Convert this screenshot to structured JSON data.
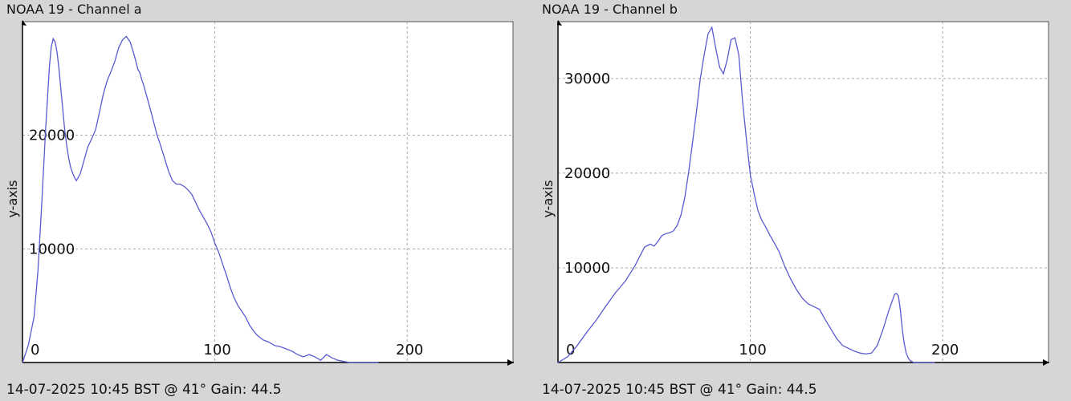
{
  "chart_data": [
    {
      "type": "line",
      "title": "NOAA 19 - Channel a",
      "ylabel": "y-axis",
      "xlabel": "",
      "footer": "14-07-2025 10:45 BST @ 41° Gain: 44.5",
      "xlim": [
        0,
        255
      ],
      "ylim": [
        0,
        30000
      ],
      "xticks": [
        0,
        100,
        200
      ],
      "yticks": [
        10000,
        20000
      ],
      "grid": true,
      "colors": {
        "line": "#5a5ad0",
        "grid": "#a8a8a8",
        "axis": "#000000",
        "plot_bg": "#ffffff"
      },
      "series": [
        {
          "x": [
            0,
            3,
            6,
            8,
            10,
            12,
            14,
            15,
            16,
            17,
            18,
            19,
            20,
            21,
            22,
            23,
            24,
            25,
            26,
            27,
            28,
            30,
            32,
            34,
            36,
            38,
            40,
            42,
            44,
            46,
            48,
            50,
            52,
            54,
            56,
            58,
            60,
            61,
            62,
            63,
            64,
            66,
            68,
            70,
            72,
            74,
            76,
            78,
            80,
            82,
            84,
            86,
            88,
            90,
            92,
            94,
            96,
            98,
            100,
            102,
            104,
            106,
            108,
            110,
            112,
            114,
            116,
            118,
            120,
            122,
            125,
            128,
            131,
            134,
            137,
            140,
            143,
            146,
            149,
            152,
            155,
            158,
            161,
            164,
            167,
            170,
            173,
            176,
            180,
            185
          ],
          "y": [
            0,
            1500,
            4000,
            8000,
            14000,
            20500,
            26000,
            27800,
            28500,
            28200,
            27300,
            25800,
            24000,
            22200,
            20400,
            19100,
            18000,
            17200,
            16700,
            16300,
            16000,
            16600,
            17800,
            19000,
            19700,
            20500,
            22000,
            23600,
            24800,
            25600,
            26500,
            27700,
            28400,
            28700,
            28200,
            27100,
            25800,
            25500,
            24900,
            24400,
            23800,
            22600,
            21300,
            20000,
            19000,
            17900,
            16800,
            16000,
            15700,
            15700,
            15500,
            15200,
            14800,
            14100,
            13400,
            12800,
            12200,
            11500,
            10500,
            9700,
            8700,
            7700,
            6600,
            5700,
            5000,
            4500,
            4000,
            3300,
            2800,
            2400,
            2000,
            1800,
            1500,
            1400,
            1200,
            1000,
            700,
            500,
            700,
            500,
            200,
            700,
            400,
            200,
            100,
            0,
            0,
            0,
            0,
            0
          ]
        }
      ]
    },
    {
      "type": "line",
      "title": "NOAA 19 - Channel b",
      "ylabel": "y-axis",
      "xlabel": "",
      "footer": "14-07-2025 10:45 BST @ 41° Gain: 44.5",
      "xlim": [
        0,
        255
      ],
      "ylim": [
        0,
        36000
      ],
      "xticks": [
        0,
        100,
        200
      ],
      "yticks": [
        10000,
        20000,
        30000
      ],
      "grid": true,
      "colors": {
        "line": "#5a5ad0",
        "grid": "#a8a8a8",
        "axis": "#000000",
        "plot_bg": "#ffffff"
      },
      "series": [
        {
          "x": [
            0,
            5,
            10,
            15,
            20,
            25,
            30,
            35,
            40,
            45,
            48,
            50,
            52,
            54,
            56,
            58,
            60,
            62,
            64,
            66,
            68,
            70,
            72,
            74,
            76,
            78,
            80,
            82,
            84,
            86,
            88,
            90,
            92,
            94,
            96,
            98,
            100,
            102,
            104,
            106,
            108,
            110,
            112,
            115,
            118,
            121,
            124,
            127,
            130,
            133,
            136,
            139,
            142,
            145,
            148,
            151,
            154,
            157,
            160,
            163,
            166,
            169,
            172,
            175,
            176,
            177,
            178,
            179,
            180,
            181,
            182,
            183,
            185,
            188,
            191,
            194,
            196
          ],
          "y": [
            0,
            600,
            1800,
            3200,
            4500,
            6000,
            7400,
            8600,
            10200,
            12200,
            12500,
            12300,
            12800,
            13400,
            13600,
            13700,
            13900,
            14500,
            15600,
            17500,
            20200,
            23300,
            26500,
            30000,
            32500,
            34700,
            35400,
            33200,
            31200,
            30500,
            32000,
            34100,
            34300,
            32500,
            27500,
            23500,
            19800,
            17800,
            16000,
            15000,
            14300,
            13500,
            12800,
            11700,
            10100,
            8800,
            7700,
            6800,
            6200,
            5900,
            5600,
            4500,
            3500,
            2500,
            1800,
            1500,
            1200,
            1000,
            900,
            1000,
            1800,
            3500,
            5500,
            7200,
            7300,
            7000,
            5500,
            3500,
            2000,
            1000,
            500,
            200,
            0,
            0,
            0,
            0,
            0
          ]
        }
      ]
    }
  ]
}
